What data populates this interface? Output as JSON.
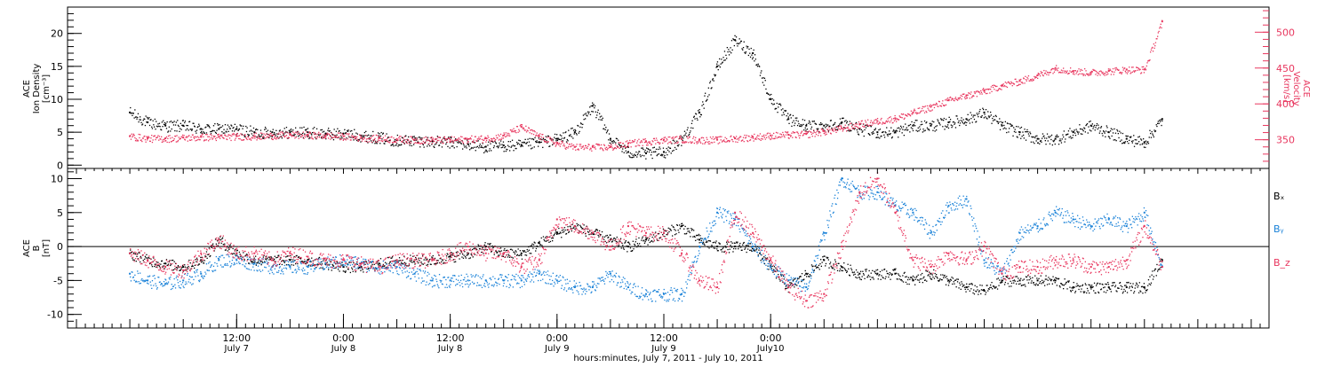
{
  "colors": {
    "black": "#000000",
    "red": "#e8365e",
    "blue": "#1a82d8"
  },
  "chart_data": [
    {
      "type": "scatter",
      "title": "",
      "ylabel_lines": [
        "ACE",
        "Ion Density",
        "[cm⁻³]"
      ],
      "y2label_lines": [
        "ACE",
        "Velocity",
        "[km/s]"
      ],
      "ylim": [
        -0.5,
        24
      ],
      "y2lim": [
        310,
        535
      ],
      "yticks": [
        0,
        5,
        10,
        15,
        20
      ],
      "y2ticks": [
        350,
        400,
        450,
        500
      ],
      "series": [
        {
          "name": "",
          "axis": "left",
          "color": "#000000",
          "x": [
            0,
            2,
            4,
            6,
            8,
            10,
            12,
            14,
            16,
            18,
            20,
            22,
            24,
            26,
            28,
            30,
            32,
            34,
            36,
            38,
            40,
            42,
            44,
            46,
            48,
            50,
            52,
            54,
            56,
            58,
            60,
            62,
            64,
            66,
            68,
            70,
            72,
            74,
            76,
            78,
            80,
            82,
            84,
            86,
            88,
            90,
            92,
            94,
            96,
            98,
            100,
            102,
            104,
            106,
            108,
            110,
            112,
            114,
            116
          ],
          "y": [
            8,
            6.5,
            6,
            6,
            5.5,
            5.5,
            5.5,
            5,
            5,
            5,
            5,
            4.8,
            4.8,
            4.5,
            4.2,
            3.8,
            3.8,
            3.6,
            3.5,
            3.2,
            2.8,
            3,
            3,
            3.5,
            4,
            5,
            9,
            4,
            2,
            1.8,
            2,
            4,
            8,
            15,
            19,
            17,
            10,
            7,
            6,
            6,
            6.5,
            5.5,
            5,
            5,
            6,
            6,
            6.5,
            7,
            8,
            6,
            5,
            4,
            4,
            5,
            6,
            5,
            4,
            3.5,
            7
          ]
        },
        {
          "name": "",
          "axis": "right",
          "color": "#e8365e",
          "x": [
            0,
            2,
            4,
            6,
            8,
            10,
            12,
            14,
            16,
            18,
            20,
            22,
            24,
            26,
            28,
            30,
            32,
            34,
            36,
            38,
            40,
            42,
            44,
            46,
            48,
            50,
            52,
            54,
            56,
            58,
            60,
            62,
            64,
            66,
            68,
            70,
            72,
            74,
            76,
            78,
            80,
            82,
            84,
            86,
            88,
            90,
            92,
            94,
            96,
            98,
            100,
            102,
            104,
            106,
            108,
            110,
            112,
            114,
            116
          ],
          "y": [
            355,
            352,
            352,
            353,
            354,
            354,
            355,
            355,
            356,
            357,
            357,
            356,
            355,
            353,
            352,
            351,
            350,
            350,
            350,
            351,
            352,
            356,
            368,
            355,
            345,
            340,
            340,
            340,
            345,
            348,
            350,
            351,
            350,
            350,
            352,
            354,
            356,
            357,
            358,
            362,
            366,
            372,
            376,
            380,
            388,
            396,
            405,
            412,
            418,
            426,
            432,
            440,
            450,
            446,
            444,
            446,
            448,
            448,
            515
          ]
        }
      ]
    },
    {
      "type": "scatter",
      "title": "",
      "ylabel_lines": [
        "ACE",
        "B",
        "[nT]"
      ],
      "ylim": [
        -12,
        11.5
      ],
      "yticks": [
        -10,
        -5,
        0,
        5,
        10
      ],
      "zero_line": true,
      "legend": [
        "Bₓ",
        "Bᵧ",
        "B_z"
      ],
      "legend_placement": "right",
      "series": [
        {
          "name": "Bₓ",
          "color": "#000000",
          "x": [
            0,
            2,
            4,
            6,
            8,
            10,
            12,
            14,
            16,
            18,
            20,
            22,
            24,
            26,
            28,
            30,
            32,
            34,
            36,
            38,
            40,
            42,
            44,
            46,
            48,
            50,
            52,
            54,
            56,
            58,
            60,
            62,
            64,
            66,
            68,
            70,
            72,
            74,
            76,
            78,
            80,
            82,
            84,
            86,
            88,
            90,
            92,
            94,
            96,
            98,
            100,
            102,
            104,
            106,
            108,
            110,
            112,
            114,
            116
          ],
          "y": [
            -1,
            -2,
            -2.5,
            -3,
            -2,
            1,
            -1,
            -2,
            -2,
            -2,
            -2,
            -2.5,
            -3,
            -3,
            -2.5,
            -2,
            -2,
            -2,
            -1.5,
            -1,
            0,
            -1,
            -1,
            0.5,
            2,
            3,
            2,
            1,
            0,
            1,
            2,
            3,
            1,
            0,
            0,
            0,
            -3,
            -6,
            -4,
            -2,
            -3,
            -4,
            -4,
            -4,
            -5,
            -4,
            -5,
            -6,
            -6.5,
            -5,
            -5,
            -5,
            -5,
            -6,
            -6,
            -6,
            -6,
            -6,
            -2
          ]
        },
        {
          "name": "Bᵧ",
          "color": "#1a82d8",
          "x": [
            0,
            2,
            4,
            6,
            8,
            10,
            12,
            14,
            16,
            18,
            20,
            22,
            24,
            26,
            28,
            30,
            32,
            34,
            36,
            38,
            40,
            42,
            44,
            46,
            48,
            50,
            52,
            54,
            56,
            58,
            60,
            62,
            64,
            66,
            68,
            70,
            72,
            74,
            76,
            78,
            80,
            82,
            84,
            86,
            88,
            90,
            92,
            94,
            96,
            98,
            100,
            102,
            104,
            106,
            108,
            110,
            112,
            114,
            116
          ],
          "y": [
            -4,
            -5,
            -5.5,
            -5,
            -4,
            -2,
            -2,
            -2.5,
            -3,
            -3,
            -3,
            -2.5,
            -2,
            -2.5,
            -3,
            -3,
            -4,
            -5,
            -5,
            -5,
            -5,
            -5,
            -5,
            -4,
            -5,
            -6,
            -6,
            -4,
            -6,
            -7,
            -7,
            -7,
            0,
            5,
            4,
            0,
            -3,
            -5,
            -6,
            2,
            10,
            8,
            8,
            6,
            5,
            2,
            6,
            7,
            -2,
            -4,
            2,
            3,
            5,
            4,
            3,
            4,
            3,
            5,
            -3
          ]
        },
        {
          "name": "B_z",
          "color": "#e8365e",
          "x": [
            0,
            2,
            4,
            6,
            8,
            10,
            12,
            14,
            16,
            18,
            20,
            22,
            24,
            26,
            28,
            30,
            32,
            34,
            36,
            38,
            40,
            42,
            44,
            46,
            48,
            50,
            52,
            54,
            56,
            58,
            60,
            62,
            64,
            66,
            68,
            70,
            72,
            74,
            76,
            78,
            80,
            82,
            84,
            86,
            88,
            90,
            92,
            94,
            96,
            98,
            100,
            102,
            104,
            106,
            108,
            110,
            112,
            114,
            116
          ],
          "y": [
            -1,
            -2,
            -3,
            -3.5,
            -1,
            1,
            -1,
            -1,
            -2,
            -1,
            -1.5,
            -2,
            -2,
            -2.5,
            -3,
            -2,
            -2,
            -2,
            -1,
            0,
            -1,
            -1,
            -3,
            -2,
            4,
            3,
            2,
            0,
            3,
            2,
            2,
            -1,
            -5,
            -6,
            5,
            2,
            -2,
            -6,
            -8,
            -7,
            0,
            8,
            10,
            5,
            -2,
            -3,
            -1,
            -2,
            0,
            -4,
            -3,
            -3,
            -2,
            -2,
            -3,
            -3,
            -2,
            3,
            -3
          ]
        }
      ]
    }
  ],
  "xaxis": {
    "xlim": [
      -7,
      128
    ],
    "ticks": [
      {
        "x": 12,
        "label": "12:00",
        "sub": "July 7"
      },
      {
        "x": 24,
        "label": "0:00",
        "sub": "July 8"
      },
      {
        "x": 36,
        "label": "12:00",
        "sub": "July 8"
      },
      {
        "x": 48,
        "label": "0:00",
        "sub": "July 9"
      },
      {
        "x": 60,
        "label": "12:00",
        "sub": "July 9"
      },
      {
        "x": 72,
        "label": "0:00",
        "sub": "July10"
      }
    ],
    "xlabel": "hours:minutes, July  7, 2011 - July 10, 2011"
  }
}
